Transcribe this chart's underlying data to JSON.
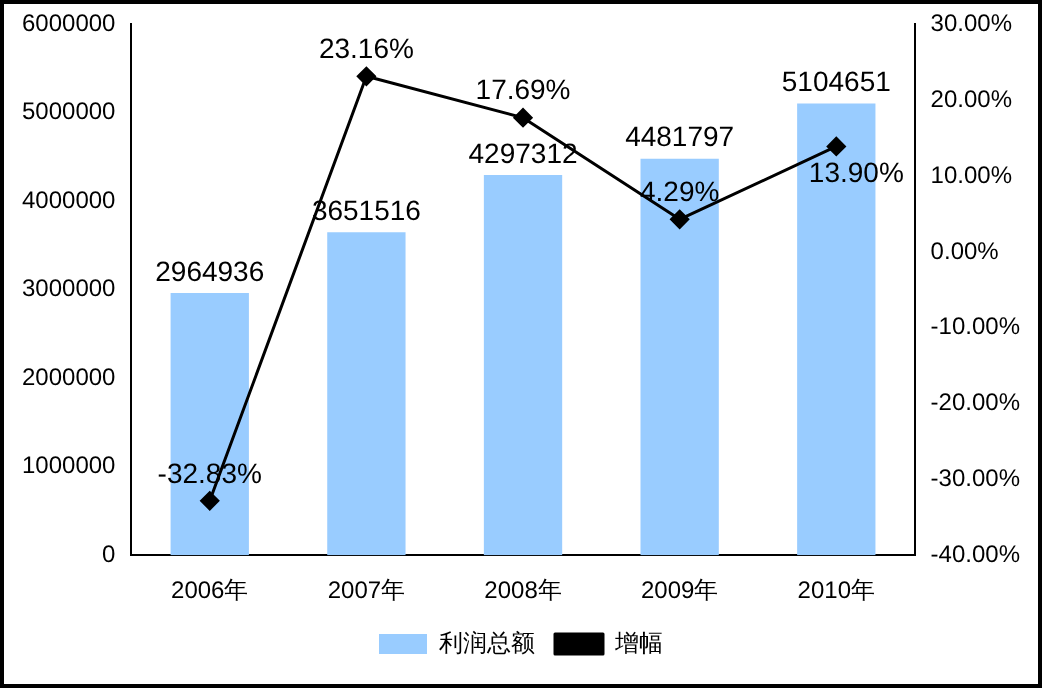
{
  "chart_data": {
    "type": "bar",
    "categories": [
      "2006年",
      "2007年",
      "2008年",
      "2009年",
      "2010年"
    ],
    "series": [
      {
        "name": "利润总额",
        "color": "#99ccff",
        "values": [
          2964936,
          3651516,
          4297312,
          4481797,
          5104651
        ],
        "value_labels": [
          "2964936",
          "3651516",
          "4297312",
          "4481797",
          "5104651"
        ]
      },
      {
        "name": "增幅",
        "type": "line",
        "axis": "y2",
        "color": "#000000",
        "values": [
          -32.83,
          23.16,
          17.69,
          4.29,
          13.9
        ],
        "value_labels": [
          "-32.83%",
          "23.16%",
          "17.69%",
          "4.29%",
          "13.90%"
        ]
      }
    ],
    "ylim": [
      0,
      6000000
    ],
    "yticks": [
      0,
      1000000,
      2000000,
      3000000,
      4000000,
      5000000,
      6000000
    ],
    "y2lim": [
      -40,
      30
    ],
    "y2ticks": [
      {
        "value": -40,
        "label": "-40.00%"
      },
      {
        "value": -30,
        "label": "-30.00%"
      },
      {
        "value": -20,
        "label": "-20.00%"
      },
      {
        "value": -10,
        "label": "-10.00%"
      },
      {
        "value": 0,
        "label": "0.00%"
      },
      {
        "value": 10,
        "label": "10.00%"
      },
      {
        "value": 20,
        "label": "20.00%"
      },
      {
        "value": 30,
        "label": "30.00%"
      }
    ],
    "grid": false,
    "legend": "bottom",
    "marker": "diamond",
    "line_style": "solid"
  }
}
